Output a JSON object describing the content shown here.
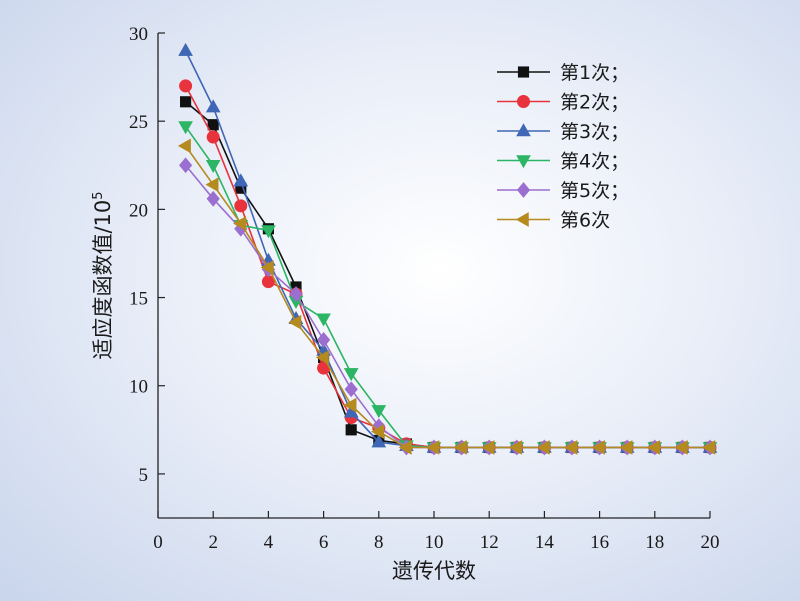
{
  "chart_data": {
    "type": "line",
    "xlabel": "遗传代数",
    "ylabel": "适应度函数值/10",
    "ylabel_superscript": "5",
    "xlim": [
      0,
      20
    ],
    "ylim": [
      2.5,
      30
    ],
    "xticks": [
      0,
      2,
      4,
      6,
      8,
      10,
      12,
      14,
      16,
      18,
      20
    ],
    "yticks": [
      5,
      10,
      15,
      20,
      25,
      30
    ],
    "grid": false,
    "legend_position": "top-right",
    "x": [
      1,
      2,
      3,
      4,
      5,
      6,
      7,
      8,
      9,
      10,
      11,
      12,
      13,
      14,
      15,
      16,
      17,
      18,
      19,
      20
    ],
    "series": [
      {
        "name": "第1次；",
        "color": "#111111",
        "marker": "square",
        "values": [
          26.1,
          24.8,
          21.2,
          18.9,
          15.6,
          11.6,
          7.5,
          6.9,
          6.7,
          6.5,
          6.5,
          6.5,
          6.5,
          6.5,
          6.5,
          6.5,
          6.5,
          6.5,
          6.5,
          6.5
        ]
      },
      {
        "name": "第2次；",
        "color": "#e8323c",
        "marker": "circle",
        "values": [
          27.0,
          24.1,
          20.2,
          15.9,
          15.2,
          11.0,
          8.2,
          7.6,
          6.7,
          6.5,
          6.5,
          6.5,
          6.5,
          6.5,
          6.5,
          6.5,
          6.5,
          6.5,
          6.5,
          6.5
        ]
      },
      {
        "name": "第3次；",
        "color": "#3f67b5",
        "marker": "triangle-up",
        "values": [
          29.0,
          25.8,
          21.6,
          17.1,
          13.8,
          12.0,
          8.5,
          6.8,
          6.6,
          6.5,
          6.5,
          6.5,
          6.5,
          6.5,
          6.5,
          6.5,
          6.5,
          6.5,
          6.5,
          6.5
        ]
      },
      {
        "name": "第4次；",
        "color": "#2bb564",
        "marker": "triangle-down",
        "values": [
          24.7,
          22.5,
          19.1,
          18.8,
          14.8,
          13.8,
          10.7,
          8.6,
          6.6,
          6.5,
          6.5,
          6.5,
          6.5,
          6.5,
          6.5,
          6.5,
          6.5,
          6.5,
          6.5,
          6.5
        ]
      },
      {
        "name": "第5次；",
        "color": "#9b6fcf",
        "marker": "diamond",
        "values": [
          22.5,
          20.6,
          18.9,
          16.6,
          15.2,
          12.6,
          9.8,
          7.7,
          6.5,
          6.5,
          6.5,
          6.5,
          6.5,
          6.5,
          6.5,
          6.5,
          6.5,
          6.5,
          6.5,
          6.5
        ]
      },
      {
        "name": "第6次",
        "color": "#b58a1e",
        "marker": "triangle-left",
        "values": [
          23.6,
          21.4,
          19.2,
          16.7,
          13.6,
          11.6,
          8.9,
          7.4,
          6.5,
          6.5,
          6.5,
          6.5,
          6.5,
          6.5,
          6.5,
          6.5,
          6.5,
          6.5,
          6.5,
          6.5
        ]
      }
    ]
  }
}
